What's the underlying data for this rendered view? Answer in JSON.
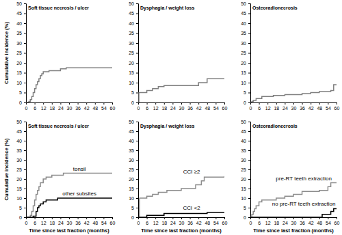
{
  "chart_data": [
    {
      "type": "line",
      "line_style": "step",
      "title": "Soft tissue necrosis / ulcer",
      "y_label": "Cumulative incidence (%)",
      "xlim": [
        0,
        60
      ],
      "ylim": [
        0,
        50
      ],
      "xticks": [
        0,
        6,
        12,
        18,
        24,
        30,
        36,
        42,
        48,
        54,
        60
      ],
      "yticks": [
        0,
        5,
        10,
        15,
        20,
        25,
        30,
        35,
        40,
        45,
        50
      ],
      "series": [
        {
          "color": "#7f7f7f",
          "x": [
            0,
            2,
            3,
            4,
            5,
            6,
            7,
            8,
            9,
            10,
            11,
            12,
            16,
            24,
            28,
            60
          ],
          "values": [
            0,
            0.5,
            1.5,
            3,
            5,
            7,
            9,
            10.5,
            12,
            13.5,
            14.5,
            15.5,
            16,
            17,
            17.5,
            17.5
          ]
        }
      ]
    },
    {
      "type": "line",
      "line_style": "step",
      "title": "Dysphagia / weight loss",
      "xlim": [
        0,
        60
      ],
      "ylim": [
        0,
        50
      ],
      "xticks": [
        0,
        6,
        12,
        18,
        24,
        30,
        36,
        42,
        48,
        54,
        60
      ],
      "yticks": [
        0,
        5,
        10,
        15,
        20,
        25,
        30,
        35,
        40,
        45,
        50
      ],
      "series": [
        {
          "color": "#7f7f7f",
          "x": [
            0,
            0.5,
            6,
            10,
            14,
            18,
            42,
            48,
            60
          ],
          "values": [
            0,
            5,
            6,
            7,
            8,
            8.5,
            10,
            12,
            12
          ]
        }
      ]
    },
    {
      "type": "line",
      "line_style": "step",
      "title": "Osteoradionecrosis",
      "xlim": [
        0,
        60
      ],
      "ylim": [
        0,
        50
      ],
      "xticks": [
        0,
        6,
        12,
        18,
        24,
        30,
        36,
        42,
        48,
        54,
        60
      ],
      "yticks": [
        0,
        5,
        10,
        15,
        20,
        25,
        30,
        35,
        40,
        45,
        50
      ],
      "series": [
        {
          "color": "#7f7f7f",
          "x": [
            0,
            1,
            2,
            4,
            8,
            16,
            24,
            36,
            42,
            48,
            56,
            58,
            60
          ],
          "values": [
            0,
            0.5,
            1,
            2,
            3,
            3.5,
            4,
            4.5,
            5,
            5.5,
            6,
            9,
            9
          ]
        }
      ]
    },
    {
      "type": "line",
      "line_style": "step",
      "title": "Soft tissue necrosis / ulcer",
      "y_label": "Cumulative incidence (%)",
      "x_label": "Time since last fraction (months)",
      "xlim": [
        0,
        60
      ],
      "ylim": [
        0,
        50
      ],
      "xticks": [
        0,
        6,
        12,
        18,
        24,
        30,
        36,
        42,
        48,
        54,
        60
      ],
      "yticks": [
        0,
        5,
        10,
        15,
        20,
        25,
        30,
        35,
        40,
        45,
        50
      ],
      "series": [
        {
          "name": "tonsil",
          "color": "#8c8c8c",
          "x": [
            0,
            3,
            4,
            5,
            6,
            7,
            8,
            9,
            10,
            12,
            14,
            18,
            26,
            60
          ],
          "values": [
            0,
            1,
            3,
            6,
            9,
            12,
            14,
            16,
            18,
            20,
            21,
            22,
            23,
            23
          ]
        },
        {
          "name": "other subsites",
          "color": "#000000",
          "x": [
            0,
            5,
            7,
            8,
            9,
            10,
            12,
            14,
            22,
            60
          ],
          "values": [
            0,
            0.5,
            3,
            5,
            6,
            7,
            8,
            9,
            10,
            10
          ]
        }
      ]
    },
    {
      "type": "line",
      "line_style": "step",
      "title": "Dysphagia / weight loss",
      "x_label": "Time since last fraction (months)",
      "xlim": [
        0,
        60
      ],
      "ylim": [
        0,
        50
      ],
      "xticks": [
        0,
        6,
        12,
        18,
        24,
        30,
        36,
        42,
        48,
        54,
        60
      ],
      "yticks": [
        0,
        5,
        10,
        15,
        20,
        25,
        30,
        35,
        40,
        45,
        50
      ],
      "series": [
        {
          "name": "CCI ≥2",
          "color": "#8c8c8c",
          "x": [
            0,
            1,
            6,
            10,
            14,
            20,
            30,
            40,
            44,
            46,
            60
          ],
          "values": [
            0,
            10,
            11,
            12,
            13,
            14,
            15,
            17,
            19,
            21,
            21.5
          ]
        },
        {
          "name": "CCI <2",
          "color": "#000000",
          "x": [
            0,
            6,
            18,
            48,
            60
          ],
          "values": [
            0,
            1,
            2,
            2.5,
            2.5
          ]
        }
      ]
    },
    {
      "type": "line",
      "line_style": "step",
      "title": "Osteoradionecrosis",
      "x_label": "Time since last fraction (months)",
      "xlim": [
        0,
        60
      ],
      "ylim": [
        0,
        50
      ],
      "xticks": [
        0,
        6,
        12,
        18,
        24,
        30,
        36,
        42,
        48,
        54,
        60
      ],
      "yticks": [
        0,
        5,
        10,
        15,
        20,
        25,
        30,
        35,
        40,
        45,
        50
      ],
      "series": [
        {
          "name": "pre-RT teeth extraction",
          "color": "#8c8c8c",
          "x": [
            0,
            1,
            2,
            3,
            4,
            6,
            8,
            18,
            24,
            30,
            36,
            48,
            54,
            56,
            60
          ],
          "values": [
            0,
            1.5,
            3,
            4.5,
            6,
            8,
            9,
            10,
            11,
            12,
            13.5,
            14,
            16,
            18,
            18
          ]
        },
        {
          "name": "no pre-RT teeth extraction",
          "color": "#000000",
          "x": [
            0,
            36,
            50,
            56,
            58,
            60
          ],
          "values": [
            0,
            0,
            1.5,
            3,
            4.5,
            4.5
          ]
        }
      ]
    }
  ]
}
